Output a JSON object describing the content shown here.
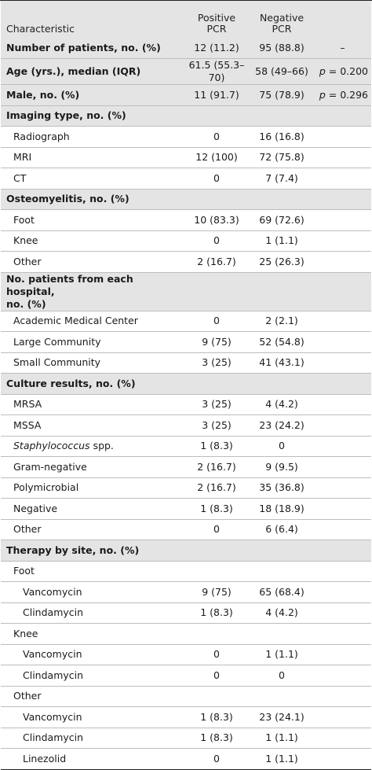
{
  "header": {
    "characteristic": "Characteristic",
    "positive_l1": "Positive",
    "positive_l2": "PCR",
    "negative_l1": "Negative",
    "negative_l2": "PCR"
  },
  "rows": {
    "r0": {
      "label": "Number of patients, no. (%)",
      "pos": "12 (11.2)",
      "neg": "95 (88.8)",
      "p": "–"
    },
    "r1": {
      "label": "Age (yrs.), median (IQR)",
      "pos": "61.5 (55.3–70)",
      "neg": "58 (49–66)",
      "p_italic": "p",
      "p_rest": " = 0.200"
    },
    "r2": {
      "label": "Male, no. (%)",
      "pos": "11 (91.7)",
      "neg": "75 (78.9)",
      "p_italic": "p",
      "p_rest": " = 0.296"
    },
    "r3": {
      "label": "Imaging type, no. (%)"
    },
    "r4": {
      "label": "Radiograph",
      "pos": "0",
      "neg": "16 (16.8)"
    },
    "r5": {
      "label": "MRI",
      "pos": "12 (100)",
      "neg": "72 (75.8)"
    },
    "r6": {
      "label": "CT",
      "pos": "0",
      "neg": "7 (7.4)"
    },
    "r7": {
      "label": "Osteomyelitis, no. (%)"
    },
    "r8": {
      "label": "Foot",
      "pos": "10 (83.3)",
      "neg": "69 (72.6)"
    },
    "r9": {
      "label": "Knee",
      "pos": "0",
      "neg": "1 (1.1)"
    },
    "r10": {
      "label": "Other",
      "pos": "2 (16.7)",
      "neg": "25 (26.3)"
    },
    "r11": {
      "label_l1": "No. patients from each hospital,",
      "label_l2": "no. (%)"
    },
    "r12": {
      "label": "Academic Medical Center",
      "pos": "0",
      "neg": "2 (2.1)"
    },
    "r13": {
      "label": "Large Community",
      "pos": "9 (75)",
      "neg": "52 (54.8)"
    },
    "r14": {
      "label": "Small Community",
      "pos": "3 (25)",
      "neg": "41 (43.1)"
    },
    "r15": {
      "label": "Culture results, no. (%)"
    },
    "r16": {
      "label": "MRSA",
      "pos": "3 (25)",
      "neg": "4 (4.2)"
    },
    "r17": {
      "label": "MSSA",
      "pos": "3 (25)",
      "neg": "23 (24.2)"
    },
    "r18": {
      "label_italic": "Staphylococcus",
      "label_rest": " spp.",
      "pos": "1 (8.3)",
      "neg": "0"
    },
    "r19": {
      "label": "Gram-negative",
      "pos": "2 (16.7)",
      "neg": "9 (9.5)"
    },
    "r20": {
      "label": "Polymicrobial",
      "pos": "2 (16.7)",
      "neg": "35 (36.8)"
    },
    "r21": {
      "label": "Negative",
      "pos": "1 (8.3)",
      "neg": "18 (18.9)"
    },
    "r22": {
      "label": "Other",
      "pos": "0",
      "neg": "6 (6.4)"
    },
    "r23": {
      "label": "Therapy by site, no. (%)"
    },
    "r24": {
      "label": "Foot"
    },
    "r25": {
      "label": "Vancomycin",
      "pos": "9 (75)",
      "neg": "65 (68.4)"
    },
    "r26": {
      "label": "Clindamycin",
      "pos": "1 (8.3)",
      "neg": "4 (4.2)"
    },
    "r27": {
      "label": "Knee"
    },
    "r28": {
      "label": "Vancomycin",
      "pos": "0",
      "neg": "1 (1.1)"
    },
    "r29": {
      "label": "Clindamycin",
      "pos": "0",
      "neg": "0"
    },
    "r30": {
      "label": "Other"
    },
    "r31": {
      "label": "Vancomycin",
      "pos": "1 (8.3)",
      "neg": "23 (24.1)"
    },
    "r32": {
      "label": "Clindamycin",
      "pos": "1 (8.3)",
      "neg": "1 (1.1)"
    },
    "r33": {
      "label": "Linezolid",
      "pos": "0",
      "neg": "1 (1.1)"
    }
  }
}
